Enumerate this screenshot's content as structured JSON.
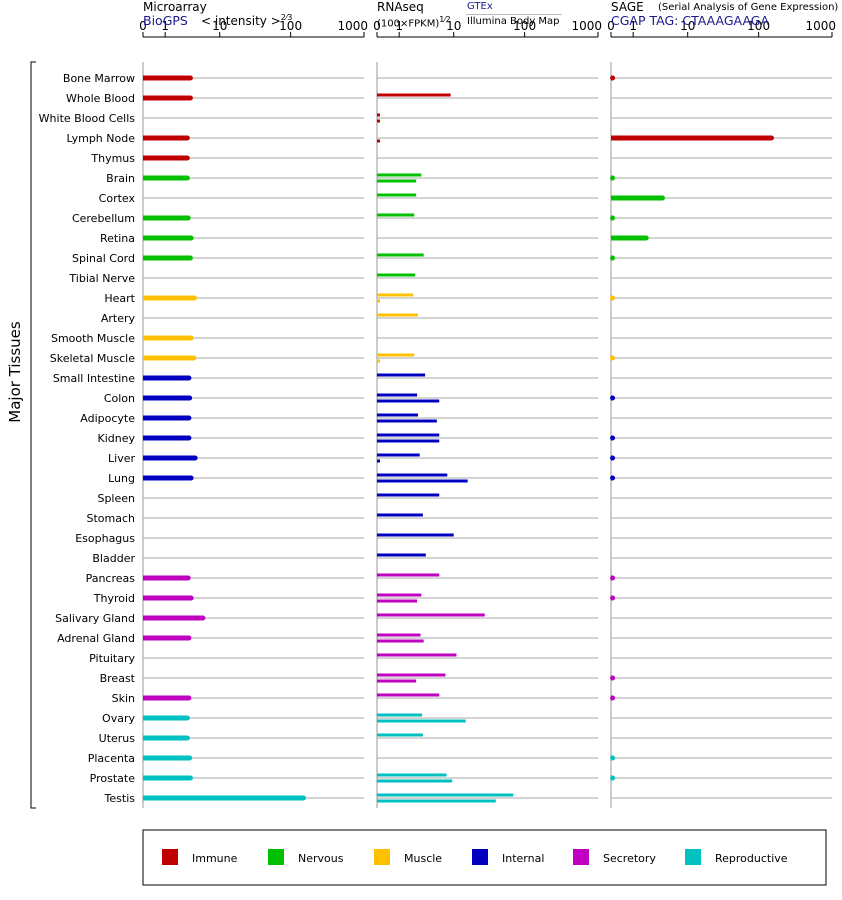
{
  "colors": {
    "immune": "#c00000",
    "nervous": "#00c000",
    "muscle": "#ffc000",
    "internal": "#0000c0",
    "secretory": "#c000c0",
    "reproductive": "#00c0c0"
  },
  "y_axis_label": "Major Tissues",
  "panels": {
    "microarray": {
      "title": "Microarray",
      "source": "BioGPS",
      "unit_prefix": "< intensity >",
      "unit_exp": "2⁄3"
    },
    "rnaseq": {
      "title": "RNAseq",
      "unit": "(100×FPKM)",
      "unit_exp": "1⁄2",
      "legend_gtex": "GTEx",
      "legend_ibm": "Illumina Body Map"
    },
    "sage": {
      "title": "SAGE",
      "subtitle": "(Serial Analysis of Gene Expression)",
      "tag_label": "CGAP TAG: CTAAAGAAGA"
    }
  },
  "chart_data": {
    "type": "bar",
    "orientation": "horizontal",
    "x_scale": "log1p",
    "x_ticks": [
      0,
      1,
      10,
      100,
      1000
    ],
    "x_tick_labels": [
      "0",
      "1",
      "10",
      "100",
      "1000"
    ],
    "xlim": [
      0,
      1000
    ],
    "categories": [
      "Bone Marrow",
      "Whole Blood",
      "White Blood Cells",
      "Lymph Node",
      "Thymus",
      "Brain",
      "Cortex",
      "Cerebellum",
      "Retina",
      "Spinal Cord",
      "Tibial Nerve",
      "Heart",
      "Artery",
      "Smooth Muscle",
      "Skeletal Muscle",
      "Small Intestine",
      "Colon",
      "Adipocyte",
      "Kidney",
      "Liver",
      "Lung",
      "Spleen",
      "Stomach",
      "Esophagus",
      "Bladder",
      "Pancreas",
      "Thyroid",
      "Salivary Gland",
      "Adrenal Gland",
      "Pituitary",
      "Breast",
      "Skin",
      "Ovary",
      "Uterus",
      "Placenta",
      "Prostate",
      "Testis"
    ],
    "groups": [
      "immune",
      "immune",
      "immune",
      "immune",
      "immune",
      "nervous",
      "nervous",
      "nervous",
      "nervous",
      "nervous",
      "nervous",
      "muscle",
      "muscle",
      "muscle",
      "muscle",
      "internal",
      "internal",
      "internal",
      "internal",
      "internal",
      "internal",
      "internal",
      "internal",
      "internal",
      "internal",
      "secretory",
      "secretory",
      "secretory",
      "secretory",
      "secretory",
      "secretory",
      "secretory",
      "reproductive",
      "reproductive",
      "reproductive",
      "reproductive",
      "reproductive"
    ],
    "series": [
      {
        "name": "Microarray (BioGPS)",
        "panel": "microarray",
        "values": [
          3.4,
          3.4,
          null,
          3.0,
          3.0,
          3.0,
          null,
          3.1,
          3.5,
          3.4,
          null,
          4.0,
          null,
          3.5,
          3.9,
          3.2,
          3.3,
          3.2,
          3.2,
          4.1,
          3.5,
          null,
          null,
          null,
          null,
          3.1,
          3.5,
          5.5,
          3.2,
          null,
          null,
          3.2,
          3.0,
          3.0,
          3.3,
          3.4,
          150
        ]
      },
      {
        "name": "RNAseq GTEx",
        "panel": "rnaseq",
        "row": "upper",
        "values": [
          null,
          9.0,
          0.1,
          null,
          null,
          3.0,
          2.4,
          2.2,
          null,
          3.3,
          2.3,
          2.1,
          2.6,
          null,
          2.2,
          3.5,
          2.5,
          2.6,
          6.0,
          2.8,
          8.0,
          6.0,
          3.2,
          10.0,
          3.6,
          6.0,
          3.0,
          28.0,
          2.9,
          11.0,
          7.5,
          6.0,
          3.1,
          3.2,
          null,
          7.8,
          70.0
        ]
      },
      {
        "name": "RNAseq Illumina Body Map",
        "panel": "rnaseq",
        "row": "lower",
        "values": [
          null,
          null,
          0.1,
          0.1,
          null,
          2.4,
          null,
          null,
          null,
          null,
          null,
          0.1,
          null,
          null,
          0.1,
          null,
          6.0,
          5.5,
          6.0,
          0.1,
          16.0,
          null,
          null,
          null,
          null,
          null,
          2.5,
          null,
          3.3,
          null,
          2.4,
          null,
          15.0,
          null,
          null,
          9.5,
          40.0
        ]
      },
      {
        "name": "SAGE (CGAP)",
        "panel": "sage",
        "values": [
          0.05,
          null,
          null,
          150,
          null,
          0.05,
          4.0,
          0.05,
          2.0,
          0.05,
          null,
          0.03,
          null,
          null,
          0.03,
          null,
          0.05,
          null,
          0.05,
          0.05,
          0.05,
          null,
          null,
          null,
          null,
          0.05,
          0.05,
          null,
          null,
          null,
          0.05,
          0.05,
          null,
          null,
          0.05,
          0.05,
          null
        ]
      }
    ]
  },
  "legend": [
    {
      "key": "immune",
      "label": "Immune"
    },
    {
      "key": "nervous",
      "label": "Nervous"
    },
    {
      "key": "muscle",
      "label": "Muscle"
    },
    {
      "key": "internal",
      "label": "Internal"
    },
    {
      "key": "secretory",
      "label": "Secretory"
    },
    {
      "key": "reproductive",
      "label": "Reproductive"
    }
  ]
}
